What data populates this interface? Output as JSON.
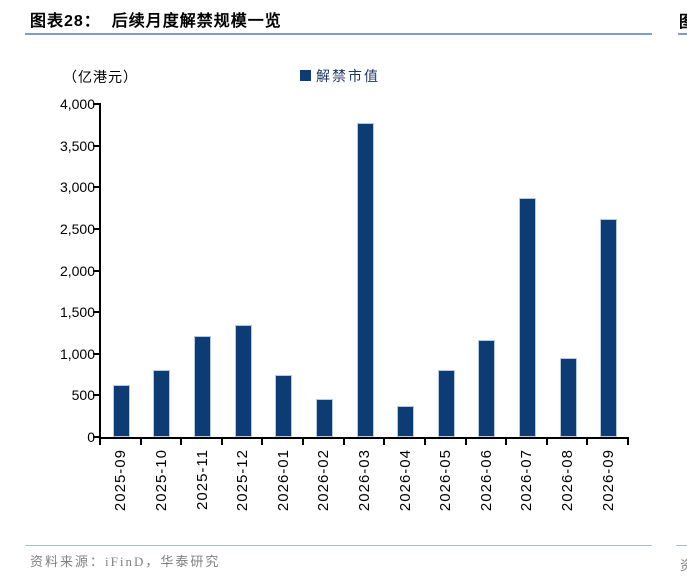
{
  "header": {
    "title": "图表28：  后续月度解禁规模一览"
  },
  "chart_data": {
    "type": "bar",
    "title": "后续月度解禁规模一览",
    "unit_label": "（亿港元）",
    "legend": [
      {
        "label": "解禁市值",
        "color": "#0d3b74"
      }
    ],
    "legend_position": "top-center",
    "categories": [
      "2025-09",
      "2025-10",
      "2025-11",
      "2025-12",
      "2026-01",
      "2026-02",
      "2026-03",
      "2026-04",
      "2026-05",
      "2026-06",
      "2026-07",
      "2026-08",
      "2026-09"
    ],
    "values": [
      620,
      800,
      1210,
      1350,
      740,
      460,
      3770,
      370,
      800,
      1160,
      2870,
      950,
      2620
    ],
    "xlabel": "",
    "ylabel": "（亿港元）",
    "ylim": [
      0,
      4000
    ],
    "ytick_interval": 500,
    "ytick_labels": [
      "0",
      "500",
      "1,000",
      "1,500",
      "2,000",
      "2,500",
      "3,000",
      "3,500",
      "4,000"
    ],
    "grid": false,
    "bar_color": "#0d3b74"
  },
  "footer": {
    "source": "资料来源：iFinD，华泰研究"
  },
  "edge_fragments": {
    "top": "图",
    "bottom": "资"
  },
  "colors": {
    "bar": "#0d3b74",
    "legend_text": "#1f3864",
    "title_rule": "#7e9cc5",
    "footer_rule": "#a9bed2",
    "footer_text": "#808080",
    "axis": "#000000"
  }
}
